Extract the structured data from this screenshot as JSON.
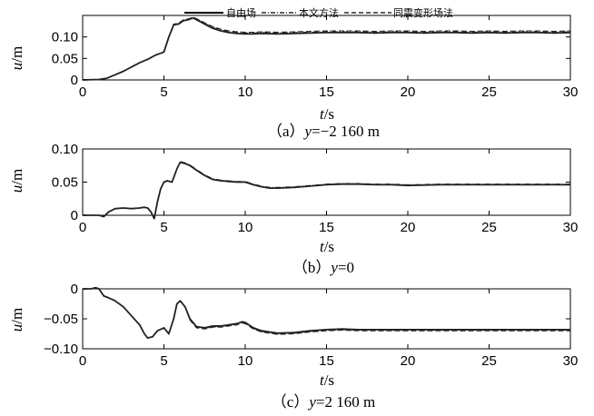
{
  "legend": {
    "free_field": "自由场",
    "proposed": "本文方法",
    "uniform_deformation": "同震变形场法"
  },
  "chart_data": [
    {
      "type": "line",
      "caption_prefix": "（a）",
      "caption_var": "y",
      "caption_value": "=−2 160 m",
      "xlabel_var": "t",
      "xlabel_unit": "/s",
      "ylabel_var": "u",
      "ylabel_unit": "/m",
      "xlim": [
        0,
        30
      ],
      "ylim": [
        0,
        0.15
      ],
      "xticks": [
        0,
        5,
        10,
        15,
        20,
        25,
        30
      ],
      "xtick_labels": [
        "0",
        "5",
        "10",
        "15",
        "20",
        "25",
        "30"
      ],
      "yticks": [
        0,
        0.05,
        0.1
      ],
      "ytick_labels": [
        "0",
        "0.05",
        "0.10"
      ],
      "grid": false,
      "legend_position": "top",
      "series": [
        {
          "name": "自由场",
          "style": "solid",
          "x": [
            0,
            1,
            1.5,
            2,
            2.5,
            3,
            3.5,
            4,
            4.5,
            4.8,
            5,
            5.3,
            5.6,
            5.9,
            6.2,
            6.5,
            6.8,
            7.2,
            7.6,
            8,
            8.5,
            9,
            9.5,
            10,
            10.5,
            11,
            12,
            13,
            14,
            15,
            16,
            17,
            18,
            19,
            20,
            21,
            22,
            23,
            24,
            25,
            26,
            27,
            28,
            29,
            30
          ],
          "y": [
            0,
            0.001,
            0.004,
            0.012,
            0.02,
            0.03,
            0.04,
            0.048,
            0.058,
            0.062,
            0.065,
            0.1,
            0.128,
            0.13,
            0.138,
            0.14,
            0.144,
            0.136,
            0.128,
            0.12,
            0.114,
            0.11,
            0.108,
            0.107,
            0.107,
            0.108,
            0.107,
            0.108,
            0.109,
            0.11,
            0.11,
            0.11,
            0.109,
            0.11,
            0.11,
            0.109,
            0.11,
            0.11,
            0.109,
            0.11,
            0.109,
            0.11,
            0.11,
            0.109,
            0.11
          ]
        },
        {
          "name": "本文方法",
          "style": "dashdot",
          "x": [
            0,
            1,
            1.5,
            2,
            2.5,
            3,
            3.5,
            4,
            4.5,
            4.8,
            5,
            5.3,
            5.6,
            5.9,
            6.2,
            6.5,
            6.8,
            7.2,
            7.6,
            8,
            8.5,
            9,
            9.5,
            10,
            10.5,
            11,
            12,
            13,
            14,
            15,
            16,
            17,
            18,
            19,
            20,
            21,
            22,
            23,
            24,
            25,
            26,
            27,
            28,
            29,
            30
          ],
          "y": [
            0,
            0.001,
            0.004,
            0.012,
            0.02,
            0.03,
            0.04,
            0.048,
            0.058,
            0.062,
            0.065,
            0.1,
            0.129,
            0.131,
            0.139,
            0.141,
            0.145,
            0.138,
            0.13,
            0.122,
            0.116,
            0.112,
            0.11,
            0.109,
            0.109,
            0.11,
            0.109,
            0.11,
            0.111,
            0.112,
            0.112,
            0.112,
            0.111,
            0.112,
            0.112,
            0.111,
            0.112,
            0.112,
            0.111,
            0.112,
            0.111,
            0.112,
            0.112,
            0.111,
            0.112
          ]
        },
        {
          "name": "同震变形场法",
          "style": "dashed",
          "x": [
            0,
            1,
            1.5,
            2,
            2.5,
            3,
            3.5,
            4,
            4.5,
            4.8,
            5,
            5.3,
            5.6,
            5.9,
            6.2,
            6.5,
            6.8,
            7.2,
            7.6,
            8,
            8.5,
            9,
            9.5,
            10,
            10.5,
            11,
            12,
            13,
            14,
            15,
            16,
            17,
            18,
            19,
            20,
            21,
            22,
            23,
            24,
            25,
            26,
            27,
            28,
            29,
            30
          ],
          "y": [
            0,
            0.001,
            0.004,
            0.012,
            0.02,
            0.03,
            0.04,
            0.048,
            0.058,
            0.062,
            0.065,
            0.101,
            0.13,
            0.132,
            0.14,
            0.142,
            0.146,
            0.139,
            0.131,
            0.124,
            0.118,
            0.114,
            0.112,
            0.111,
            0.111,
            0.112,
            0.111,
            0.112,
            0.113,
            0.114,
            0.114,
            0.114,
            0.113,
            0.114,
            0.114,
            0.113,
            0.114,
            0.114,
            0.113,
            0.114,
            0.113,
            0.114,
            0.114,
            0.113,
            0.114
          ]
        }
      ]
    },
    {
      "type": "line",
      "caption_prefix": "（b）",
      "caption_var": "y",
      "caption_value": "=0",
      "xlabel_var": "t",
      "xlabel_unit": "/s",
      "ylabel_var": "u",
      "ylabel_unit": "/m",
      "xlim": [
        0,
        30
      ],
      "ylim": [
        0,
        0.1
      ],
      "xticks": [
        0,
        5,
        10,
        15,
        20,
        25,
        30
      ],
      "xtick_labels": [
        "0",
        "5",
        "10",
        "15",
        "20",
        "25",
        "30"
      ],
      "yticks": [
        0,
        0.05,
        0.1
      ],
      "ytick_labels": [
        "0",
        "0.05",
        "0.10"
      ],
      "grid": false,
      "series": [
        {
          "name": "自由场",
          "style": "solid",
          "x": [
            0,
            1,
            1.3,
            1.6,
            2,
            2.5,
            3,
            3.5,
            3.8,
            4,
            4.2,
            4.4,
            4.6,
            4.8,
            5,
            5.2,
            5.5,
            5.8,
            6,
            6.3,
            6.6,
            7,
            7.5,
            8,
            8.5,
            9,
            9.5,
            10,
            10.5,
            11,
            11.5,
            12,
            13,
            14,
            15,
            16,
            17,
            18,
            19,
            20,
            22,
            24,
            26,
            28,
            30
          ],
          "y": [
            0,
            0,
            -0.002,
            0.005,
            0.01,
            0.011,
            0.01,
            0.011,
            0.012,
            0.011,
            0.005,
            -0.005,
            0.02,
            0.04,
            0.05,
            0.052,
            0.05,
            0.07,
            0.08,
            0.078,
            0.075,
            0.068,
            0.06,
            0.054,
            0.052,
            0.051,
            0.05,
            0.05,
            0.046,
            0.043,
            0.041,
            0.041,
            0.042,
            0.044,
            0.046,
            0.047,
            0.047,
            0.046,
            0.046,
            0.045,
            0.046,
            0.046,
            0.046,
            0.046,
            0.046
          ]
        },
        {
          "name": "本文方法",
          "style": "dashdot",
          "x": [
            0,
            1,
            1.3,
            1.6,
            2,
            2.5,
            3,
            3.5,
            3.8,
            4,
            4.2,
            4.4,
            4.6,
            4.8,
            5,
            5.2,
            5.5,
            5.8,
            6,
            6.3,
            6.6,
            7,
            7.5,
            8,
            8.5,
            9,
            9.5,
            10,
            10.5,
            11,
            11.5,
            12,
            13,
            14,
            15,
            16,
            17,
            18,
            19,
            20,
            22,
            24,
            26,
            28,
            30
          ],
          "y": [
            0,
            0,
            -0.002,
            0.005,
            0.01,
            0.011,
            0.01,
            0.011,
            0.012,
            0.011,
            0.005,
            -0.005,
            0.02,
            0.04,
            0.05,
            0.052,
            0.05,
            0.07,
            0.081,
            0.079,
            0.076,
            0.069,
            0.061,
            0.055,
            0.053,
            0.052,
            0.051,
            0.051,
            0.047,
            0.044,
            0.042,
            0.042,
            0.043,
            0.045,
            0.047,
            0.048,
            0.048,
            0.047,
            0.047,
            0.046,
            0.047,
            0.047,
            0.047,
            0.047,
            0.047
          ]
        },
        {
          "name": "同震变形场法",
          "style": "dashed",
          "x": [
            0,
            1,
            1.3,
            1.6,
            2,
            2.5,
            3,
            3.5,
            3.8,
            4,
            4.2,
            4.4,
            4.6,
            4.8,
            5,
            5.2,
            5.5,
            5.8,
            6,
            6.3,
            6.6,
            7,
            7.5,
            8,
            8.5,
            9,
            9.5,
            10,
            10.5,
            11,
            11.5,
            12,
            13,
            14,
            15,
            16,
            17,
            18,
            19,
            20,
            22,
            24,
            26,
            28,
            30
          ],
          "y": [
            0,
            0,
            -0.002,
            0.005,
            0.01,
            0.011,
            0.01,
            0.011,
            0.012,
            0.011,
            0.005,
            -0.005,
            0.02,
            0.04,
            0.05,
            0.052,
            0.05,
            0.07,
            0.08,
            0.078,
            0.075,
            0.068,
            0.06,
            0.054,
            0.052,
            0.051,
            0.05,
            0.05,
            0.046,
            0.043,
            0.041,
            0.041,
            0.042,
            0.044,
            0.046,
            0.047,
            0.047,
            0.046,
            0.046,
            0.045,
            0.046,
            0.046,
            0.046,
            0.046,
            0.046
          ]
        }
      ]
    },
    {
      "type": "line",
      "caption_prefix": "（c）",
      "caption_var": "y",
      "caption_value": "=2 160 m",
      "xlabel_var": "t",
      "xlabel_unit": "/s",
      "ylabel_var": "u",
      "ylabel_unit": "/m",
      "xlim": [
        0,
        30
      ],
      "ylim": [
        -0.1,
        0
      ],
      "xticks": [
        0,
        5,
        10,
        15,
        20,
        25,
        30
      ],
      "xtick_labels": [
        "0",
        "5",
        "10",
        "15",
        "20",
        "25",
        "30"
      ],
      "yticks": [
        0,
        -0.05,
        -0.1
      ],
      "ytick_labels": [
        "0",
        "−0.05",
        "−0.10"
      ],
      "grid": false,
      "series": [
        {
          "name": "自由场",
          "style": "solid",
          "x": [
            0,
            0.5,
            0.8,
            1,
            1.3,
            1.6,
            2,
            2.5,
            3,
            3.5,
            3.8,
            4,
            4.3,
            4.6,
            5,
            5.3,
            5.6,
            5.8,
            6,
            6.3,
            6.6,
            7,
            7.5,
            8,
            8.5,
            9,
            9.5,
            9.8,
            10,
            10.5,
            11,
            11.5,
            12,
            13,
            14,
            15,
            16,
            17,
            18,
            19,
            20,
            22,
            24,
            26,
            28,
            30
          ],
          "y": [
            0,
            0,
            0.002,
            0,
            -0.012,
            -0.015,
            -0.02,
            -0.03,
            -0.045,
            -0.06,
            -0.075,
            -0.082,
            -0.08,
            -0.07,
            -0.065,
            -0.075,
            -0.05,
            -0.025,
            -0.02,
            -0.03,
            -0.05,
            -0.063,
            -0.065,
            -0.062,
            -0.062,
            -0.06,
            -0.058,
            -0.055,
            -0.056,
            -0.065,
            -0.07,
            -0.072,
            -0.074,
            -0.073,
            -0.07,
            -0.068,
            -0.067,
            -0.068,
            -0.068,
            -0.068,
            -0.068,
            -0.068,
            -0.068,
            -0.068,
            -0.068,
            -0.068
          ]
        },
        {
          "name": "本文方法",
          "style": "dashdot",
          "x": [
            0,
            0.5,
            0.8,
            1,
            1.3,
            1.6,
            2,
            2.5,
            3,
            3.5,
            3.8,
            4,
            4.3,
            4.6,
            5,
            5.3,
            5.6,
            5.8,
            6,
            6.3,
            6.6,
            7,
            7.5,
            8,
            8.5,
            9,
            9.5,
            9.8,
            10,
            10.5,
            11,
            11.5,
            12,
            13,
            14,
            15,
            16,
            17,
            18,
            19,
            20,
            22,
            24,
            26,
            28,
            30
          ],
          "y": [
            0,
            0,
            0.002,
            0,
            -0.012,
            -0.015,
            -0.02,
            -0.03,
            -0.045,
            -0.06,
            -0.075,
            -0.082,
            -0.08,
            -0.07,
            -0.065,
            -0.075,
            -0.05,
            -0.025,
            -0.02,
            -0.03,
            -0.051,
            -0.064,
            -0.066,
            -0.063,
            -0.063,
            -0.061,
            -0.059,
            -0.056,
            -0.057,
            -0.066,
            -0.071,
            -0.073,
            -0.075,
            -0.074,
            -0.071,
            -0.069,
            -0.068,
            -0.069,
            -0.069,
            -0.069,
            -0.069,
            -0.069,
            -0.069,
            -0.069,
            -0.069,
            -0.069
          ]
        },
        {
          "name": "同震变形场法",
          "style": "dashed",
          "x": [
            0,
            0.5,
            0.8,
            1,
            1.3,
            1.6,
            2,
            2.5,
            3,
            3.5,
            3.8,
            4,
            4.3,
            4.6,
            5,
            5.3,
            5.6,
            5.8,
            6,
            6.3,
            6.6,
            7,
            7.5,
            8,
            8.5,
            9,
            9.5,
            9.8,
            10,
            10.5,
            11,
            11.5,
            12,
            13,
            14,
            15,
            16,
            17,
            18,
            19,
            20,
            22,
            24,
            26,
            28,
            30
          ],
          "y": [
            0,
            0,
            0.002,
            0,
            -0.012,
            -0.015,
            -0.02,
            -0.03,
            -0.045,
            -0.06,
            -0.075,
            -0.082,
            -0.08,
            -0.07,
            -0.065,
            -0.075,
            -0.05,
            -0.025,
            -0.02,
            -0.03,
            -0.052,
            -0.065,
            -0.067,
            -0.064,
            -0.064,
            -0.062,
            -0.06,
            -0.057,
            -0.058,
            -0.067,
            -0.072,
            -0.074,
            -0.076,
            -0.075,
            -0.072,
            -0.07,
            -0.069,
            -0.07,
            -0.07,
            -0.07,
            -0.07,
            -0.07,
            -0.07,
            -0.07,
            -0.07,
            -0.07
          ]
        }
      ]
    }
  ]
}
